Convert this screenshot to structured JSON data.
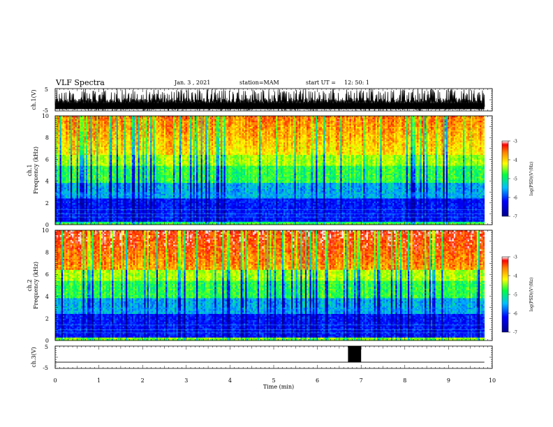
{
  "header": {
    "title": "VLF Spectra",
    "date": "Jan. 3 , 2021",
    "station": "station=MAM",
    "start": "start UT =",
    "start_time": "12: 50: 1"
  },
  "chart_data": [
    {
      "id": "ch1-waveform",
      "type": "line",
      "ylabel": "ch.1(V)",
      "ylim": [
        -5,
        5
      ],
      "yticks": [
        "5",
        "-5"
      ],
      "xlim": [
        0,
        10
      ],
      "description_values": {
        "baseline": -2.5,
        "spike_max": 5,
        "spike_min": -5
      }
    },
    {
      "id": "ch1-spectrogram",
      "type": "heatmap",
      "ylabel": "ch.1\nFrequency (kHz)",
      "ylim": [
        0,
        10
      ],
      "yticks": [
        "0",
        "2",
        "4",
        "6",
        "8",
        "10"
      ],
      "xlim": [
        0,
        10
      ],
      "data_end_min": 9.82,
      "colorbar": {
        "label": "log(PSD)(V²/Hz)",
        "range": [
          -7,
          -3
        ],
        "ticks": [
          "-3",
          "-4",
          "-5",
          "-6",
          "-7"
        ]
      }
    },
    {
      "id": "ch2-spectrogram",
      "type": "heatmap",
      "ylabel": "ch.2\nFrequency (kHz)",
      "ylim": [
        0,
        10
      ],
      "yticks": [
        "0",
        "2",
        "4",
        "6",
        "8",
        "10"
      ],
      "xlim": [
        0,
        10
      ],
      "data_end_min": 9.82,
      "colorbar": {
        "label": "log(PSD)(V²/Hz)",
        "range": [
          -7,
          -3
        ],
        "ticks": [
          "-3",
          "-4",
          "-5",
          "-6",
          "-7"
        ]
      }
    },
    {
      "id": "ch3-waveform",
      "type": "line",
      "ylabel": "ch.3(V)",
      "ylim": [
        -5,
        5
      ],
      "yticks": [
        "5",
        "-5"
      ],
      "xlim": [
        0,
        10
      ],
      "baseline": -2.2,
      "pulse": {
        "x_start": 6.7,
        "x_end": 7.0,
        "y_high": 5
      }
    }
  ],
  "xaxis": {
    "label": "Time (min)",
    "ticks": [
      "0",
      "1",
      "2",
      "3",
      "4",
      "5",
      "6",
      "7",
      "8",
      "9",
      "10"
    ],
    "range": [
      0,
      10
    ]
  }
}
